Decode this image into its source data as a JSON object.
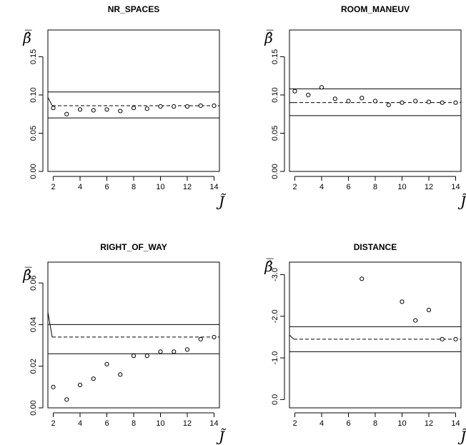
{
  "chart_data": [
    {
      "type": "scatter",
      "title": "NR_SPACES",
      "xlabel": "J̃",
      "ylabel": "β̂̅",
      "xlim": [
        1.6,
        14.4
      ],
      "ylim": [
        0.0,
        0.185
      ],
      "x_ticks": [
        "2",
        "4",
        "6",
        "8",
        "10",
        "12",
        "14"
      ],
      "y_ticks": [
        "0.00",
        "0.05",
        "0.10",
        "0.15"
      ],
      "y_tick_values": [
        0.0,
        0.05,
        0.1,
        0.15
      ],
      "x": [
        2,
        3,
        4,
        5,
        6,
        7,
        8,
        9,
        10,
        11,
        12,
        13,
        14
      ],
      "y": [
        0.083,
        0.075,
        0.081,
        0.08,
        0.081,
        0.079,
        0.083,
        0.082,
        0.085,
        0.085,
        0.085,
        0.086,
        0.086
      ],
      "dashed_line": 0.086,
      "band": [
        0.07,
        0.104
      ],
      "start_value": 0.097
    },
    {
      "type": "scatter",
      "title": "ROOM_MANEUV",
      "xlabel": "J̃",
      "ylabel": "β̂̅",
      "xlim": [
        1.6,
        14.4
      ],
      "ylim": [
        0.0,
        0.185
      ],
      "x_ticks": [
        "2",
        "4",
        "6",
        "8",
        "10",
        "12",
        "14"
      ],
      "y_ticks": [
        "0.00",
        "0.05",
        "0.10",
        "0.15"
      ],
      "y_tick_values": [
        0.0,
        0.05,
        0.1,
        0.15
      ],
      "x": [
        2,
        3,
        4,
        5,
        6,
        7,
        8,
        9,
        10,
        11,
        12,
        13,
        14
      ],
      "y": [
        0.105,
        0.1,
        0.11,
        0.095,
        0.092,
        0.096,
        0.092,
        0.087,
        0.09,
        0.092,
        0.091,
        0.09,
        0.09
      ],
      "dashed_line": 0.09,
      "band": [
        0.073,
        0.108
      ],
      "start_value": 0.09
    },
    {
      "type": "scatter",
      "title": "RIGHT_OF_WAY",
      "xlabel": "J̃",
      "ylabel": "β̂̅",
      "xlim": [
        1.6,
        14.4
      ],
      "ylim": [
        0.0,
        0.07
      ],
      "x_ticks": [
        "2",
        "4",
        "6",
        "8",
        "10",
        "12",
        "14"
      ],
      "y_ticks": [
        "0.00",
        "0.02",
        "0.04",
        "0.06"
      ],
      "y_tick_values": [
        0.0,
        0.02,
        0.04,
        0.06
      ],
      "x": [
        2,
        3,
        4,
        5,
        6,
        7,
        8,
        9,
        10,
        11,
        12,
        13,
        14
      ],
      "y": [
        0.01,
        0.004,
        0.011,
        0.014,
        0.021,
        0.016,
        0.025,
        0.025,
        0.027,
        0.027,
        0.028,
        0.033,
        0.034
      ],
      "dashed_line": 0.034,
      "band": [
        0.026,
        0.04
      ],
      "start_value": 0.046
    },
    {
      "type": "scatter",
      "title": "DISTANCE",
      "xlabel": "J̃",
      "ylabel": "β̂̅",
      "xlim": [
        1.6,
        14.4
      ],
      "ylim": [
        0.2,
        -3.3
      ],
      "x_ticks": [
        "2",
        "4",
        "6",
        "8",
        "10",
        "12",
        "14"
      ],
      "y_ticks": [
        "0.0",
        "-1.0",
        "-2.0",
        "-3.0"
      ],
      "y_tick_values": [
        0.0,
        -1.0,
        -2.0,
        -3.0
      ],
      "x": [
        7,
        10,
        11,
        12,
        13,
        14
      ],
      "y": [
        -2.9,
        -2.35,
        -1.9,
        -2.15,
        -1.45,
        -1.45
      ],
      "dashed_line": -1.45,
      "band": [
        -1.15,
        -1.75
      ],
      "start_value": -1.55
    }
  ]
}
